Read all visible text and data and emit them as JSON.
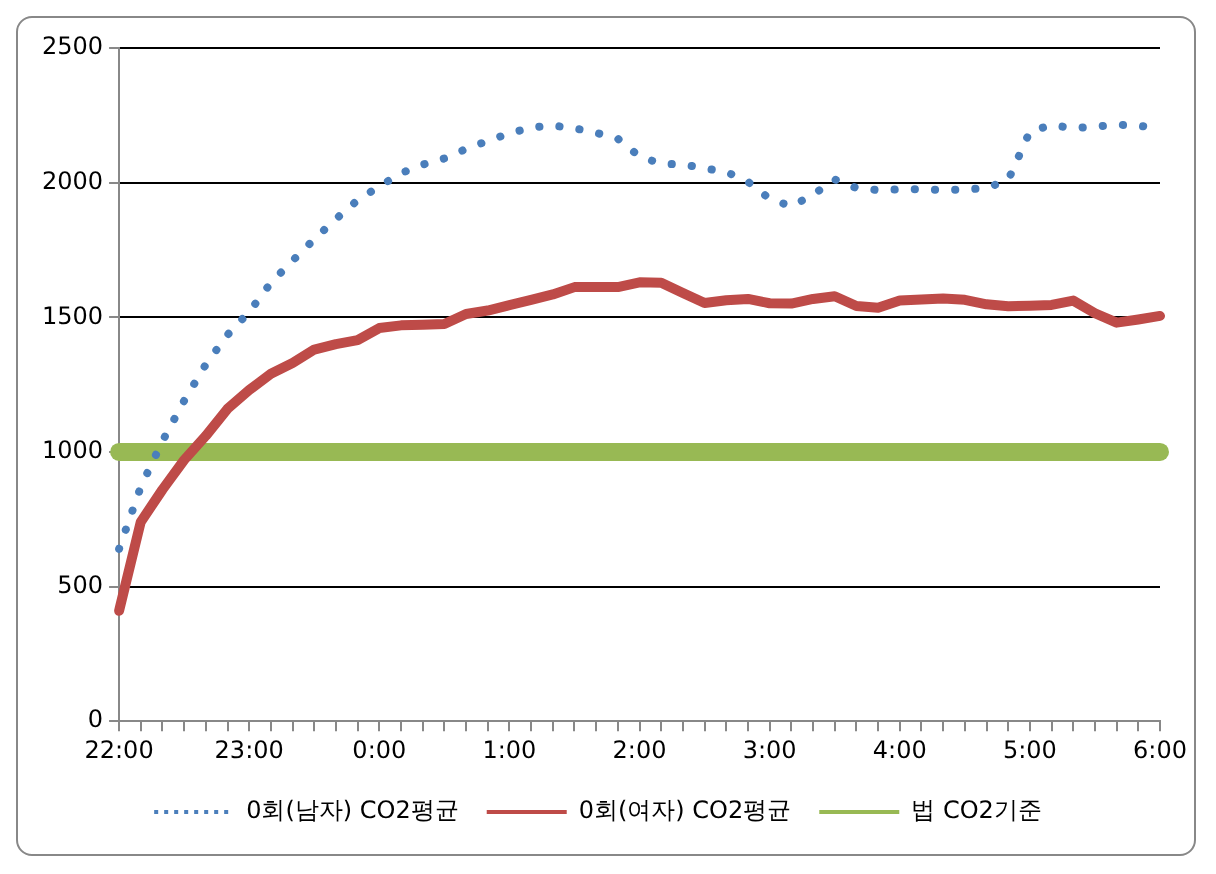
{
  "chart_data": {
    "type": "line",
    "categories": [
      "22:00",
      null,
      null,
      null,
      null,
      null,
      "23:00",
      null,
      null,
      null,
      null,
      null,
      "0:00",
      null,
      null,
      null,
      null,
      null,
      "1:00",
      null,
      null,
      null,
      null,
      null,
      "2:00",
      null,
      null,
      null,
      null,
      null,
      "3:00",
      null,
      null,
      null,
      null,
      null,
      "4:00",
      null,
      null,
      null,
      null,
      null,
      "5:00",
      null,
      null,
      null,
      null,
      null,
      "6:00"
    ],
    "series": [
      {
        "name": "0회(남자) CO2평균",
        "color": "#4a7ebb",
        "line_style": "dotted",
        "values": [
          640,
          870,
          1040,
          1190,
          1325,
          1435,
          1520,
          1628,
          1710,
          1790,
          1865,
          1935,
          1986,
          2035,
          2067,
          2090,
          2125,
          2155,
          2183,
          2205,
          2212,
          2202,
          2185,
          2163,
          2097,
          2070,
          2068,
          2053,
          2040,
          2003,
          1940,
          1912,
          1955,
          2012,
          1980,
          1972,
          1975,
          1975,
          1973,
          1974,
          1980,
          2010,
          2190,
          2214,
          2202,
          2208,
          2215,
          2212,
          2200
        ]
      },
      {
        "name": "0회(여자) CO2평균",
        "color": "#be4b48",
        "line_style": "solid",
        "values": [
          410,
          740,
          860,
          970,
          1060,
          1160,
          1230,
          1290,
          1330,
          1380,
          1400,
          1415,
          1460,
          1470,
          1472,
          1475,
          1512,
          1525,
          1545,
          1565,
          1585,
          1612,
          1612,
          1612,
          1630,
          1628,
          1590,
          1553,
          1563,
          1568,
          1552,
          1551,
          1568,
          1578,
          1542,
          1535,
          1562,
          1566,
          1570,
          1565,
          1548,
          1541,
          1543,
          1546,
          1562,
          1515,
          1480,
          1492,
          1505
        ]
      },
      {
        "name": "법 CO2기준",
        "color": "#98b954",
        "line_style": "solid",
        "values": [
          1000,
          1000,
          1000,
          1000,
          1000,
          1000,
          1000,
          1000,
          1000,
          1000,
          1000,
          1000,
          1000,
          1000,
          1000,
          1000,
          1000,
          1000,
          1000,
          1000,
          1000,
          1000,
          1000,
          1000,
          1000,
          1000,
          1000,
          1000,
          1000,
          1000,
          1000,
          1000,
          1000,
          1000,
          1000,
          1000,
          1000,
          1000,
          1000,
          1000,
          1000,
          1000,
          1000,
          1000,
          1000,
          1000,
          1000,
          1000,
          1000
        ]
      }
    ],
    "ylim": [
      0,
      2500
    ],
    "yticks": [
      0,
      500,
      1000,
      1500,
      2000,
      2500
    ],
    "grid": "y",
    "legend": "bottom",
    "marker": "none"
  }
}
